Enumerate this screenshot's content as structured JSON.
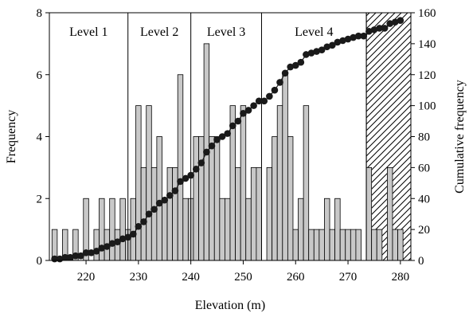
{
  "chart_data": {
    "type": "bar",
    "xlabel": "Elevation (m)",
    "ylabel": "Frequency",
    "y2label": "Cumulative frequency",
    "xlim": [
      213,
      282
    ],
    "ylim": [
      0,
      8
    ],
    "y2lim": [
      0,
      160
    ],
    "x_ticks": [
      220,
      230,
      240,
      250,
      260,
      270,
      280
    ],
    "y_ticks": [
      0,
      2,
      4,
      6,
      8
    ],
    "y2_ticks": [
      0,
      20,
      40,
      60,
      80,
      100,
      120,
      140,
      160
    ],
    "bin_width": 1,
    "bars": {
      "name": "Frequency",
      "x": [
        214,
        215,
        216,
        217,
        218,
        219,
        220,
        221,
        222,
        223,
        224,
        225,
        226,
        227,
        228,
        229,
        230,
        231,
        232,
        233,
        234,
        235,
        236,
        237,
        238,
        239,
        240,
        241,
        242,
        243,
        244,
        245,
        246,
        247,
        248,
        249,
        250,
        251,
        252,
        253,
        254,
        255,
        256,
        257,
        258,
        259,
        260,
        261,
        262,
        263,
        264,
        265,
        266,
        267,
        268,
        269,
        270,
        271,
        272,
        273,
        274,
        275,
        276,
        277,
        278,
        279,
        280
      ],
      "values": [
        1,
        0,
        1,
        0,
        1,
        0,
        2,
        0,
        1,
        2,
        1,
        2,
        1,
        2,
        1,
        2,
        5,
        3,
        5,
        3,
        4,
        2,
        3,
        3,
        6,
        2,
        2,
        4,
        4,
        7,
        4,
        4,
        2,
        2,
        5,
        3,
        5,
        2,
        3,
        3,
        0,
        3,
        4,
        5,
        6,
        4,
        1,
        2,
        5,
        1,
        1,
        1,
        2,
        1,
        2,
        1,
        1,
        1,
        1,
        0,
        3,
        1,
        1,
        0,
        3,
        1,
        1
      ],
      "color": "#c8c8c8"
    },
    "cumulative": {
      "name": "Cumulative frequency",
      "x": [
        214,
        215,
        216,
        217,
        218,
        219,
        220,
        221,
        222,
        223,
        224,
        225,
        226,
        227,
        228,
        229,
        230,
        231,
        232,
        233,
        234,
        235,
        236,
        237,
        238,
        239,
        240,
        241,
        242,
        243,
        244,
        245,
        246,
        247,
        248,
        249,
        250,
        251,
        252,
        253,
        254,
        255,
        256,
        257,
        258,
        259,
        260,
        261,
        262,
        263,
        264,
        265,
        266,
        267,
        268,
        269,
        270,
        271,
        272,
        273,
        274,
        275,
        276,
        277,
        278,
        279,
        280
      ],
      "values": [
        1,
        1,
        2,
        2,
        3,
        3,
        5,
        5,
        6,
        8,
        9,
        11,
        12,
        14,
        15,
        17,
        22,
        25,
        30,
        33,
        37,
        39,
        42,
        45,
        51,
        53,
        55,
        59,
        63,
        70,
        74,
        78,
        80,
        82,
        87,
        90,
        95,
        97,
        100,
        103,
        103,
        106,
        110,
        115,
        121,
        125,
        126,
        128,
        133,
        134,
        135,
        136,
        138,
        139,
        141,
        142,
        143,
        144,
        145,
        145,
        148,
        149,
        150,
        150,
        153,
        154,
        155
      ],
      "color": "#1a1a1a"
    },
    "levels": [
      {
        "label": "Level 1",
        "from": 213,
        "to": 228
      },
      {
        "label": "Level 2",
        "from": 228,
        "to": 240
      },
      {
        "label": "Level 3",
        "from": 240,
        "to": 253.5
      },
      {
        "label": "Level 4",
        "from": 253.5,
        "to": 273.5
      }
    ],
    "hatched_region": {
      "from": 273.5,
      "to": 282
    },
    "grid": false,
    "legend": "none"
  }
}
